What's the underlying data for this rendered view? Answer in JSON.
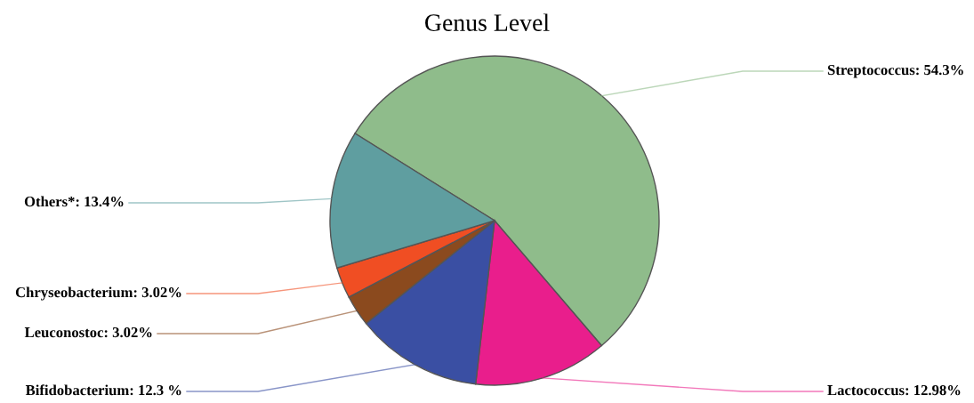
{
  "chart_data": {
    "type": "pie",
    "title": "Genus Level",
    "categories": [
      "Streptococcus",
      "Lactococcus",
      "Bifidobacterium",
      "Leuconostoc",
      "Chryseobacterium",
      "Others*"
    ],
    "values": [
      54.3,
      12.98,
      12.3,
      3.02,
      3.02,
      13.4
    ],
    "value_labels": [
      "54.3%",
      "12.98%",
      "12.3 %",
      "3.02%",
      "3.02%",
      "13.4%"
    ],
    "colors": [
      "#8fbc8b",
      "#e91e8c",
      "#3a4fa3",
      "#8b4a1e",
      "#f04e23",
      "#5f9ea0"
    ],
    "legend": false
  }
}
